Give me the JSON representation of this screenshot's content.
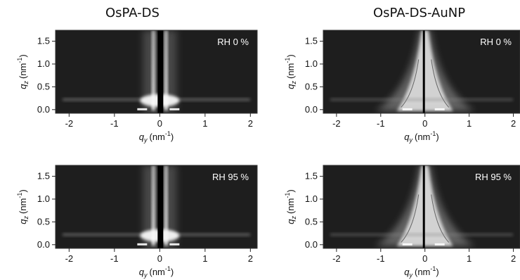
{
  "figure": {
    "columns": [
      {
        "title": "OsPA-DS"
      },
      {
        "title": "OsPA-DS-AuNP"
      }
    ]
  },
  "chart_data": [
    {
      "type": "heatmap",
      "title": "OsPA-DS",
      "annotation": "RH 0 %",
      "sample": "OsPA-DS",
      "x_axis": {
        "symbol": "q",
        "subscript": "y",
        "unit": "(nm",
        "unit_sup": "-1",
        "unit_close": ")",
        "range": [
          -2.3,
          2.15
        ],
        "ticks": [
          -2,
          -1,
          0,
          1,
          2
        ],
        "tick_labels": [
          "-2",
          "-1",
          "0",
          "1",
          "2"
        ]
      },
      "y_axis": {
        "symbol": "q",
        "subscript": "z",
        "unit": "(nm",
        "unit_sup": "-1",
        "unit_close": ")",
        "range": [
          -0.08,
          1.74
        ],
        "ticks": [
          0,
          0.5,
          1.0,
          1.5
        ],
        "tick_labels": [
          "0.0",
          "0.5",
          "1.0",
          "1.5"
        ]
      }
    },
    {
      "type": "heatmap",
      "title": "OsPA-DS-AuNP",
      "annotation": "RH 0 %",
      "sample": "OsPA-DS-AuNP",
      "x_axis": {
        "symbol": "q",
        "subscript": "y",
        "unit": "(nm",
        "unit_sup": "-1",
        "unit_close": ")",
        "range": [
          -2.3,
          2.15
        ],
        "ticks": [
          -2,
          -1,
          0,
          1,
          2
        ],
        "tick_labels": [
          "-2",
          "-1",
          "0",
          "1",
          "2"
        ]
      },
      "y_axis": {
        "symbol": "q",
        "subscript": "z",
        "unit": "(nm",
        "unit_sup": "-1",
        "unit_close": ")",
        "range": [
          -0.08,
          1.74
        ],
        "ticks": [
          0,
          0.5,
          1.0,
          1.5
        ],
        "tick_labels": [
          "0.0",
          "0.5",
          "1.0",
          "1.5"
        ]
      }
    },
    {
      "type": "heatmap",
      "title": "",
      "annotation": "RH 95 %",
      "sample": "OsPA-DS",
      "x_axis": {
        "symbol": "q",
        "subscript": "y",
        "unit": "(nm",
        "unit_sup": "-1",
        "unit_close": ")",
        "range": [
          -2.3,
          2.15
        ],
        "ticks": [
          -2,
          -1,
          0,
          1,
          2
        ],
        "tick_labels": [
          "-2",
          "-1",
          "0",
          "1",
          "2"
        ]
      },
      "y_axis": {
        "symbol": "q",
        "subscript": "z",
        "unit": "(nm",
        "unit_sup": "-1",
        "unit_close": ")",
        "range": [
          -0.08,
          1.74
        ],
        "ticks": [
          0,
          0.5,
          1.0,
          1.5
        ],
        "tick_labels": [
          "0.0",
          "0.5",
          "1.0",
          "1.5"
        ]
      }
    },
    {
      "type": "heatmap",
      "title": "",
      "annotation": "RH 95 %",
      "sample": "OsPA-DS-AuNP",
      "x_axis": {
        "symbol": "q",
        "subscript": "y",
        "unit": "(nm",
        "unit_sup": "-1",
        "unit_close": ")",
        "range": [
          -2.3,
          2.15
        ],
        "ticks": [
          -2,
          -1,
          0,
          1,
          2
        ],
        "tick_labels": [
          "-2",
          "-1",
          "0",
          "1",
          "2"
        ]
      },
      "y_axis": {
        "symbol": "q",
        "subscript": "z",
        "unit": "(nm",
        "unit_sup": "-1",
        "unit_close": ")",
        "range": [
          -0.08,
          1.74
        ],
        "ticks": [
          0,
          0.5,
          1.0,
          1.5
        ],
        "tick_labels": [
          "0.0",
          "0.5",
          "1.0",
          "1.5"
        ]
      }
    }
  ]
}
